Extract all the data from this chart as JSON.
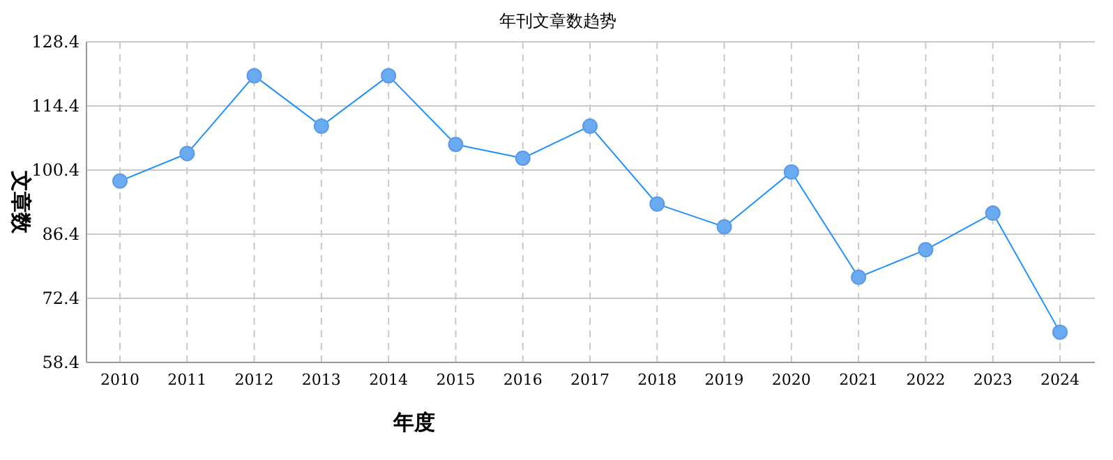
{
  "chart_data": {
    "type": "line",
    "title": "年刊文章数趋势",
    "xlabel": "年度",
    "ylabel": "文章数",
    "categories": [
      "2010",
      "2011",
      "2012",
      "2013",
      "2014",
      "2015",
      "2016",
      "2017",
      "2018",
      "2019",
      "2020",
      "2021",
      "2022",
      "2023",
      "2024"
    ],
    "series": [
      {
        "color": "#1e90ff",
        "values": [
          98,
          104,
          121,
          110,
          121,
          106,
          103,
          110,
          93,
          88,
          100,
          77,
          83,
          91,
          65
        ]
      }
    ],
    "ylim": [
      58.4,
      128.4
    ],
    "yticks": [
      58.4,
      72.4,
      86.4,
      100.4,
      114.4,
      128.4
    ],
    "grid": true,
    "marker": "circle",
    "line_style": "solid"
  }
}
